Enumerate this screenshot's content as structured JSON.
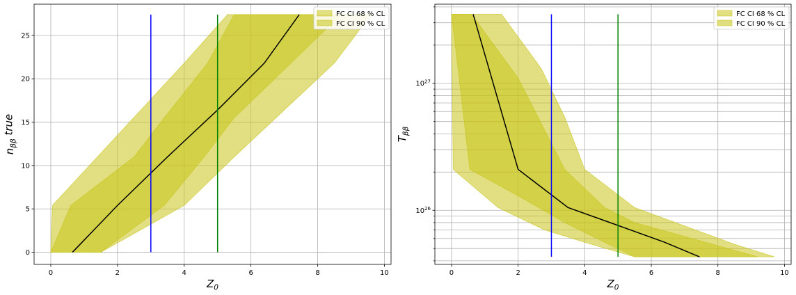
{
  "chart_data": [
    {
      "type": "area",
      "xlabel": "Z_0",
      "ylabel": "n_ββ true",
      "xlim": [
        -0.5,
        10.2
      ],
      "ylim": [
        -1.4,
        28.6
      ],
      "yscale": "linear",
      "xticks": [
        0,
        2,
        4,
        6,
        8,
        10
      ],
      "xtick_labels": [
        "0",
        "2",
        "4",
        "6",
        "8",
        "10"
      ],
      "yticks": [
        0,
        5,
        10,
        15,
        20,
        25
      ],
      "ytick_labels": [
        "0",
        "5",
        "10",
        "15",
        "20",
        "25"
      ],
      "grid": true,
      "legend_position": "upper-right",
      "legend": [
        "FC CI 68 % CL",
        "FC CI 90 % CL"
      ],
      "bands": [
        {
          "name": "FC CI 68 % CL",
          "color": "#c8c41a",
          "alpha": 0.55,
          "upper": [
            [
              0,
              0
            ],
            [
              0.6,
              5.4
            ],
            [
              2.5,
              11
            ],
            [
              3.4,
              15.5
            ],
            [
              4.7,
              21.8
            ],
            [
              5.5,
              27.4
            ],
            [
              9.0,
              27.4
            ]
          ],
          "lower": [
            [
              0.1,
              0
            ],
            [
              1.5,
              0
            ],
            [
              3.4,
              5.4
            ],
            [
              4.6,
              11
            ],
            [
              5.5,
              15.5
            ],
            [
              7.2,
              21.8
            ],
            [
              8.7,
              27.4
            ]
          ]
        },
        {
          "name": "FC CI 90 % CL",
          "color": "#c8c41a",
          "alpha": 0.55,
          "upper": [
            [
              0,
              0
            ],
            [
              0.05,
              5.4
            ],
            [
              1.4,
              11
            ],
            [
              2.7,
              16.4
            ],
            [
              4.0,
              21.8
            ],
            [
              5.3,
              27.4
            ],
            [
              9.6,
              27.4
            ]
          ],
          "lower": [
            [
              0.1,
              0
            ],
            [
              1.5,
              0
            ],
            [
              4.0,
              5.4
            ],
            [
              5.5,
              11
            ],
            [
              7.0,
              16.4
            ],
            [
              8.5,
              21.8
            ],
            [
              9.6,
              27.4
            ]
          ]
        }
      ],
      "median_line": {
        "color": "#000000",
        "points": [
          [
            0.65,
            0
          ],
          [
            2.0,
            5.4
          ],
          [
            3.5,
            11
          ],
          [
            5.0,
            16.4
          ],
          [
            6.4,
            21.8
          ],
          [
            7.45,
            27.4
          ]
        ]
      },
      "vertical_lines": [
        {
          "x": 3,
          "y_range": [
            0,
            27.4
          ],
          "color": "#0000ff"
        },
        {
          "x": 5,
          "y_range": [
            0,
            27.4
          ],
          "color": "#008000"
        }
      ]
    },
    {
      "type": "area",
      "xlabel": "Z_0",
      "ylabel": "T_ββ",
      "xlim": [
        -0.5,
        10.2
      ],
      "ylim": [
        3.75e+25,
        4.2e+27
      ],
      "yscale": "log",
      "xticks": [
        0,
        2,
        4,
        6,
        8,
        10
      ],
      "xtick_labels": [
        "0",
        "2",
        "4",
        "6",
        "8",
        "10"
      ],
      "yticks": [
        1e+26,
        1e+27
      ],
      "ytick_labels": [
        "10^26",
        "10^27"
      ],
      "grid": true,
      "legend_position": "upper-right",
      "legend": [
        "FC CI 68 % CL",
        "FC CI 90 % CL"
      ],
      "bands": [
        {
          "name": "FC CI 68 % CL",
          "color": "#c8c41a",
          "alpha": 0.55,
          "upper": [
            [
              0,
              3.5e+27
            ],
            [
              0.6,
              3.5e+27
            ],
            [
              2.0,
              1.1e+27
            ],
            [
              3.4,
              2.1e+26
            ],
            [
              4.6,
              1.05e+26
            ],
            [
              5.5,
              8e+25
            ],
            [
              9.2,
              4.3e+25
            ]
          ],
          "lower": [
            [
              0,
              3.5e+27
            ],
            [
              0.55,
              2.1e+26
            ],
            [
              2.0,
              1.3e+26
            ],
            [
              3.4,
              8e+25
            ],
            [
              4.6,
              5.6e+25
            ],
            [
              5.5,
              4.3e+25
            ],
            [
              9.2,
              4.3e+25
            ]
          ]
        },
        {
          "name": "FC CI 90 % CL",
          "color": "#c8c41a",
          "alpha": 0.55,
          "upper": [
            [
              0,
              3.5e+27
            ],
            [
              1.5,
              3.5e+27
            ],
            [
              2.7,
              1.3e+27
            ],
            [
              3.4,
              5.4e+26
            ],
            [
              4.0,
              2.1e+26
            ],
            [
              5.5,
              1.05e+26
            ],
            [
              8.5,
              5.4e+25
            ],
            [
              9.7,
              4.3e+25
            ]
          ],
          "lower": [
            [
              0,
              3.5e+27
            ],
            [
              0.05,
              2.1e+26
            ],
            [
              1.4,
              1.05e+26
            ],
            [
              2.8,
              7e+25
            ],
            [
              4.0,
              5.6e+25
            ],
            [
              5.5,
              4.3e+25
            ],
            [
              9.7,
              4.3e+25
            ]
          ]
        }
      ],
      "median_line": {
        "color": "#000000",
        "points": [
          [
            0.65,
            3.5e+27
          ],
          [
            2.0,
            2.1e+26
          ],
          [
            3.5,
            1.05e+26
          ],
          [
            5.0,
            7.6e+25
          ],
          [
            6.4,
            5.6e+25
          ],
          [
            7.45,
            4.3e+25
          ]
        ]
      },
      "vertical_lines": [
        {
          "x": 3,
          "y_range": [
            4.3e+25,
            3.5e+27
          ],
          "color": "#0000ff"
        },
        {
          "x": 5,
          "y_range": [
            4.3e+25,
            3.5e+27
          ],
          "color": "#008000"
        }
      ]
    }
  ]
}
